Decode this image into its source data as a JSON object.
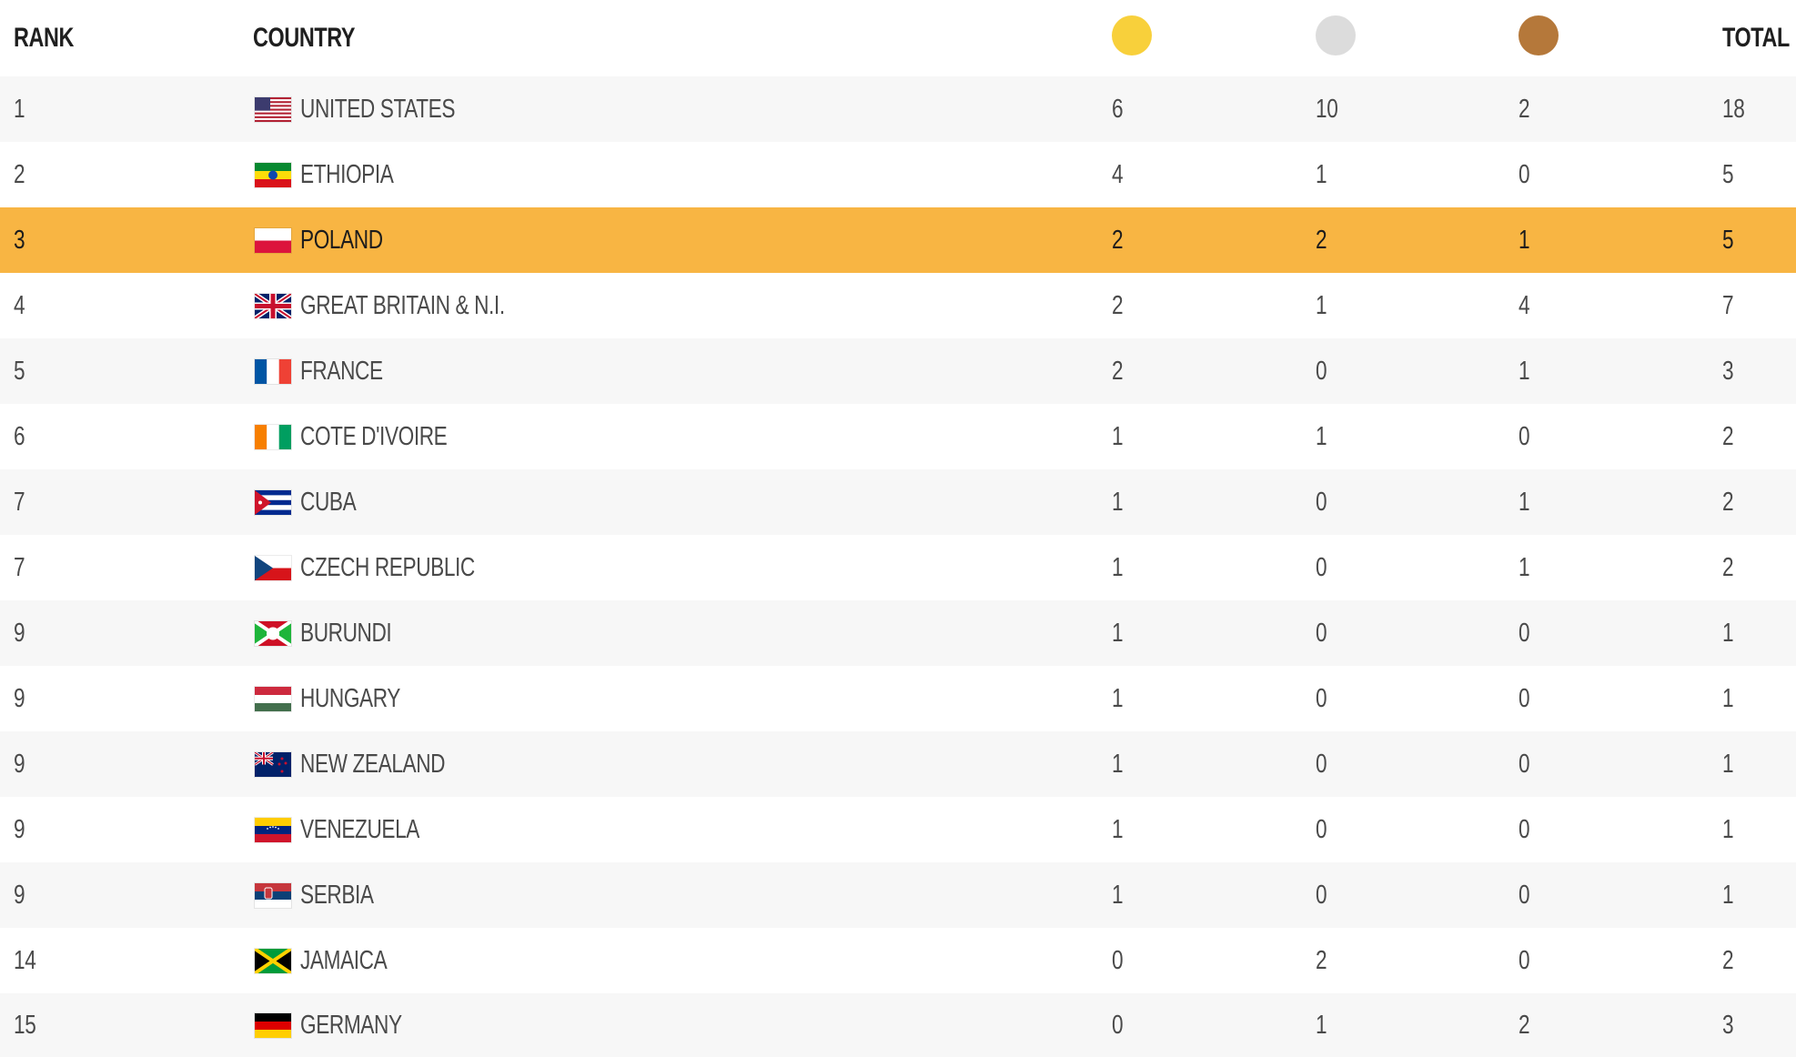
{
  "header": {
    "rank_label": "RANK",
    "country_label": "COUNTRY",
    "gold_icon": "gold-medal-icon",
    "silver_icon": "silver-medal-icon",
    "bronze_icon": "bronze-medal-icon",
    "total_label": "TOTAL"
  },
  "colors": {
    "gold": "#f8d03b",
    "silver": "#dcdcdc",
    "bronze": "#b5783a",
    "highlight_row": "#f8b543",
    "striped_row": "#f7f7f7"
  },
  "highlighted_country": "POLAND",
  "rows": [
    {
      "rank": "1",
      "country": "UNITED STATES",
      "flag": "us-flag-icon",
      "gold": "6",
      "silver": "10",
      "bronze": "2",
      "total": "18"
    },
    {
      "rank": "2",
      "country": "ETHIOPIA",
      "flag": "ethiopia-flag-icon",
      "gold": "4",
      "silver": "1",
      "bronze": "0",
      "total": "5"
    },
    {
      "rank": "3",
      "country": "POLAND",
      "flag": "poland-flag-icon",
      "gold": "2",
      "silver": "2",
      "bronze": "1",
      "total": "5"
    },
    {
      "rank": "4",
      "country": "GREAT BRITAIN & N.I.",
      "flag": "uk-flag-icon",
      "gold": "2",
      "silver": "1",
      "bronze": "4",
      "total": "7"
    },
    {
      "rank": "5",
      "country": "FRANCE",
      "flag": "france-flag-icon",
      "gold": "2",
      "silver": "0",
      "bronze": "1",
      "total": "3"
    },
    {
      "rank": "6",
      "country": "COTE D'IVOIRE",
      "flag": "cote-divoire-flag-icon",
      "gold": "1",
      "silver": "1",
      "bronze": "0",
      "total": "2"
    },
    {
      "rank": "7",
      "country": "CUBA",
      "flag": "cuba-flag-icon",
      "gold": "1",
      "silver": "0",
      "bronze": "1",
      "total": "2"
    },
    {
      "rank": "7",
      "country": "CZECH REPUBLIC",
      "flag": "czech-flag-icon",
      "gold": "1",
      "silver": "0",
      "bronze": "1",
      "total": "2"
    },
    {
      "rank": "9",
      "country": "BURUNDI",
      "flag": "burundi-flag-icon",
      "gold": "1",
      "silver": "0",
      "bronze": "0",
      "total": "1"
    },
    {
      "rank": "9",
      "country": "HUNGARY",
      "flag": "hungary-flag-icon",
      "gold": "1",
      "silver": "0",
      "bronze": "0",
      "total": "1"
    },
    {
      "rank": "9",
      "country": "NEW ZEALAND",
      "flag": "new-zealand-flag-icon",
      "gold": "1",
      "silver": "0",
      "bronze": "0",
      "total": "1"
    },
    {
      "rank": "9",
      "country": "VENEZUELA",
      "flag": "venezuela-flag-icon",
      "gold": "1",
      "silver": "0",
      "bronze": "0",
      "total": "1"
    },
    {
      "rank": "9",
      "country": "SERBIA",
      "flag": "serbia-flag-icon",
      "gold": "1",
      "silver": "0",
      "bronze": "0",
      "total": "1"
    },
    {
      "rank": "14",
      "country": "JAMAICA",
      "flag": "jamaica-flag-icon",
      "gold": "0",
      "silver": "2",
      "bronze": "0",
      "total": "2"
    },
    {
      "rank": "15",
      "country": "GERMANY",
      "flag": "germany-flag-icon",
      "gold": "0",
      "silver": "1",
      "bronze": "2",
      "total": "3"
    }
  ]
}
